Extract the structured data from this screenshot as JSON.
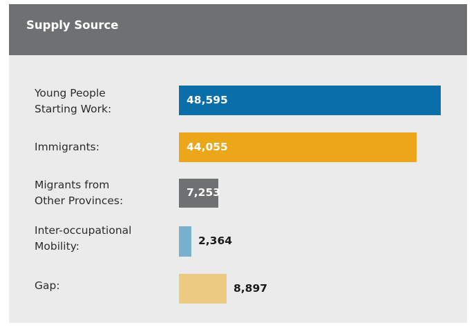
{
  "header": {
    "title": "Supply Source"
  },
  "colors": {
    "header_bg": "#6f7072",
    "card_bg": "#ebebeb",
    "young": "#0a6fa8",
    "immigrants": "#eba619",
    "migrants": "#6f7072",
    "inter": "#78b0cd",
    "gap": "#edca82"
  },
  "chart_data": {
    "type": "bar",
    "orientation": "horizontal",
    "title": "Supply Source",
    "categories": [
      "Young People Starting Work:",
      "Immigrants:",
      "Migrants from Other Provinces:",
      "Inter-occupational Mobility:",
      "Gap:"
    ],
    "category_lines": [
      [
        "Young People",
        "Starting Work:"
      ],
      [
        "Immigrants:"
      ],
      [
        "Migrants from",
        "Other Provinces:"
      ],
      [
        "Inter-occupational",
        "Mobility:"
      ],
      [
        "Gap:"
      ]
    ],
    "values": [
      48595,
      44055,
      7253,
      2364,
      8897
    ],
    "value_labels": [
      "48,595",
      "44,055",
      "7,253",
      "2,364",
      "8,897"
    ],
    "bar_colors": [
      "#0a6fa8",
      "#eba619",
      "#6f7072",
      "#78b0cd",
      "#edca82"
    ],
    "label_inside": [
      true,
      true,
      true,
      false,
      false
    ],
    "grid": false,
    "legend": "none"
  }
}
